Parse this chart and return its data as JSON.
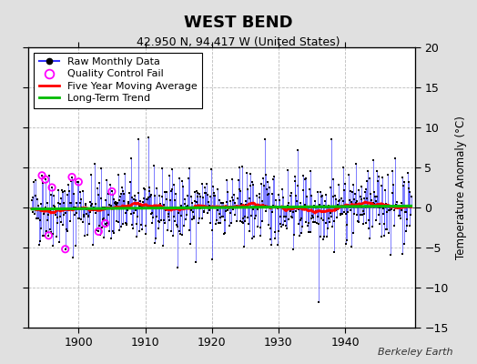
{
  "title": "WEST BEND",
  "subtitle": "42.950 N, 94.417 W (United States)",
  "ylabel_right": "Temperature Anomaly (°C)",
  "watermark": "Berkeley Earth",
  "xlim": [
    1892.5,
    1950.5
  ],
  "ylim": [
    -15,
    20
  ],
  "yticks": [
    -15,
    -10,
    -5,
    0,
    5,
    10,
    15,
    20
  ],
  "xticks": [
    1900,
    1910,
    1920,
    1930,
    1940
  ],
  "bg_color": "#e0e0e0",
  "plot_bg_color": "#ffffff",
  "line_color": "#3333ff",
  "dot_color": "#000000",
  "ma_color": "#ff0000",
  "trend_color": "#00bb00",
  "qc_color": "#ff00ff",
  "legend_labels": [
    "Raw Monthly Data",
    "Quality Control Fail",
    "Five Year Moving Average",
    "Long-Term Trend"
  ],
  "seed": 42
}
